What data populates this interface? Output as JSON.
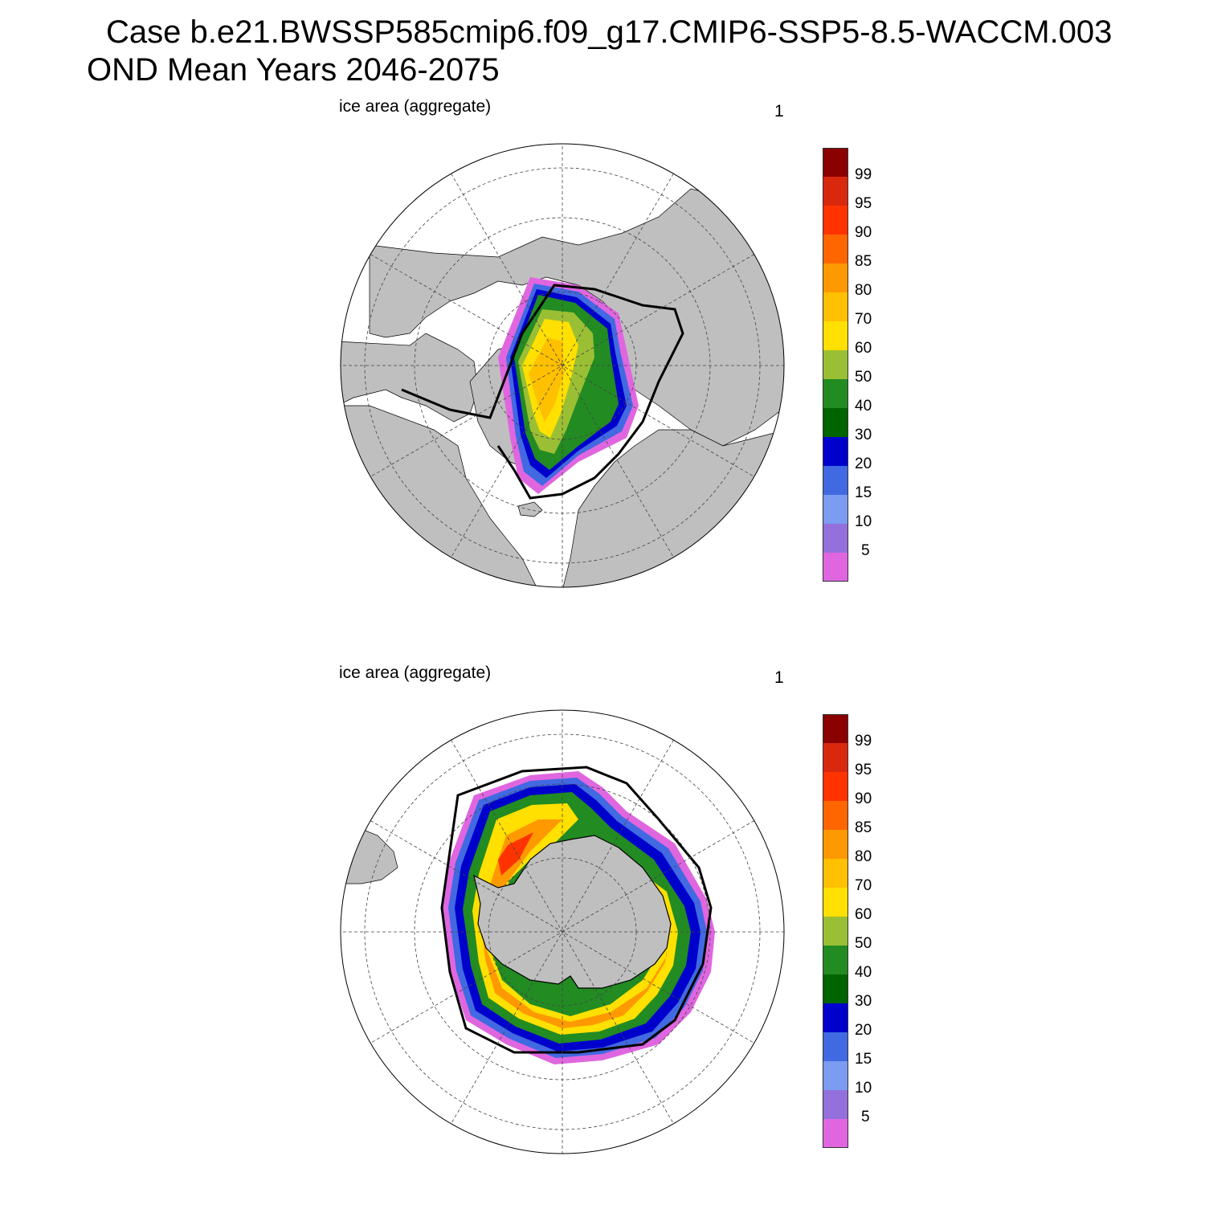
{
  "title": {
    "line1": "Case b.e21.BWSSP585cmip6.f09_g17.CMIP6-SSP5-8.5-WACCM.003",
    "line2": "OND Mean   Years 2046-2075"
  },
  "panels": [
    {
      "id": "north",
      "label": "ice area  (aggregate)",
      "number": "1"
    },
    {
      "id": "south",
      "label": "ice area  (aggregate)",
      "number": "1"
    }
  ],
  "colorbar": {
    "colors": [
      "#8b0000",
      "#d8290f",
      "#ff3300",
      "#ff6600",
      "#ff9900",
      "#ffc000",
      "#ffe000",
      "#9bbf34",
      "#228b22",
      "#006400",
      "#0000cd",
      "#4169e1",
      "#7b9cf0",
      "#9370db",
      "#e066e0"
    ],
    "labels": [
      "99",
      "95",
      "90",
      "85",
      "80",
      "70",
      "60",
      "50",
      "40",
      "30",
      "20",
      "15",
      "10",
      "5"
    ]
  },
  "colors": {
    "land": "#bfbfbf",
    "ocean": "#ffffff",
    "grid": "#444444",
    "ice_edge": "#000000"
  }
}
